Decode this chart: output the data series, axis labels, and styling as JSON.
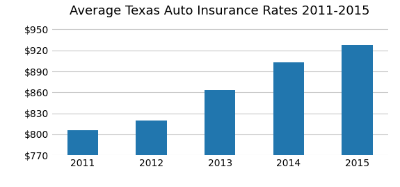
{
  "title": "Average Texas Auto Insurance Rates 2011-2015",
  "categories": [
    "2011",
    "2012",
    "2013",
    "2014",
    "2015"
  ],
  "values": [
    806,
    820,
    863,
    903,
    928
  ],
  "bar_color": "#2176AE",
  "ylim": [
    770,
    960
  ],
  "yticks": [
    770,
    800,
    830,
    860,
    890,
    920,
    950
  ],
  "title_fontsize": 13,
  "tick_fontsize": 10,
  "background_color": "#ffffff",
  "grid_color": "#c8c8c8",
  "bar_width": 0.45
}
